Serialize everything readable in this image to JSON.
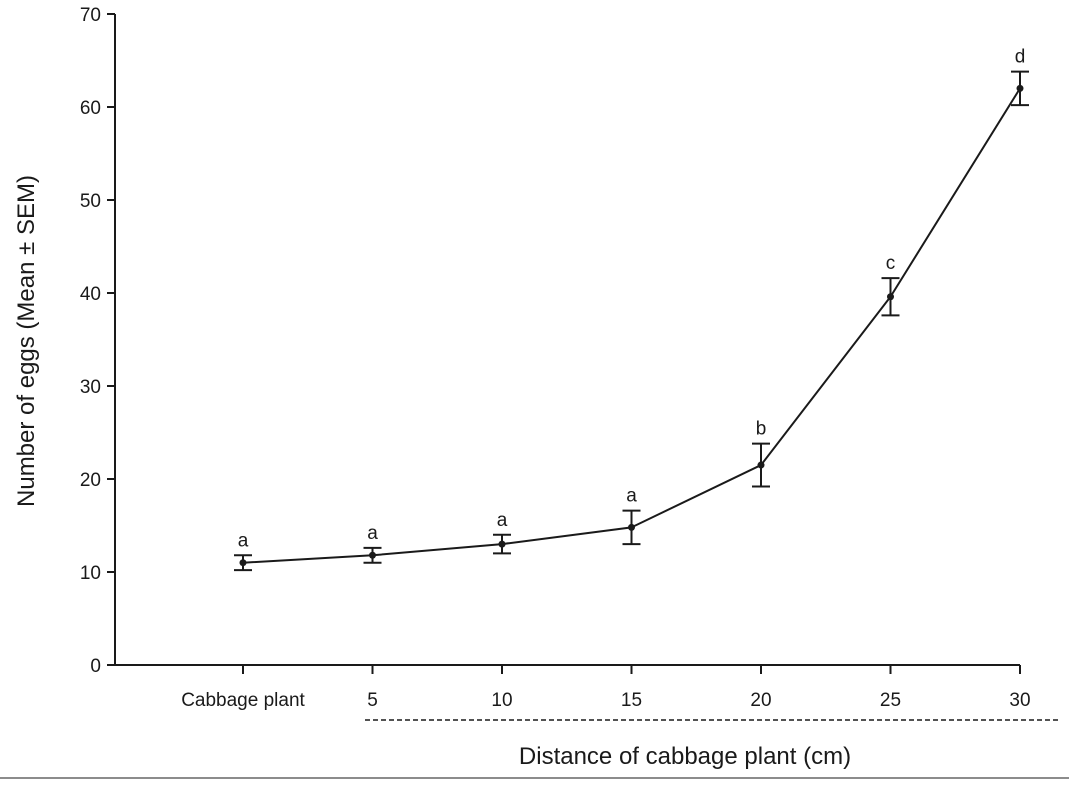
{
  "chart_data": {
    "type": "line",
    "title": "",
    "xlabel": "Distance of cabbage plant (cm)",
    "ylabel": "Number of eggs (Mean ± SEM)",
    "categories": [
      "Cabbage plant",
      "5",
      "10",
      "15",
      "20",
      "25",
      "30"
    ],
    "ylim": [
      0,
      70
    ],
    "yticks": [
      0,
      10,
      20,
      30,
      40,
      50,
      60,
      70
    ],
    "grid": false,
    "series": [
      {
        "values": [
          11.0,
          11.8,
          13.0,
          14.8,
          21.5,
          39.6,
          62.0
        ],
        "sem": [
          0.8,
          0.8,
          1.0,
          1.8,
          2.3,
          2.0,
          1.8
        ],
        "significance_letters": [
          "a",
          "a",
          "a",
          "a",
          "b",
          "c",
          "d"
        ]
      }
    ],
    "colors": {
      "line": "#1a1a1a",
      "axis": "#1a1a1a"
    }
  }
}
